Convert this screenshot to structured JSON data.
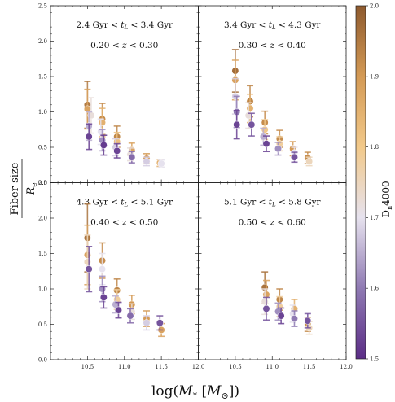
{
  "chart_data": {
    "type": "scatter",
    "xlabel": "log(M_* [M_⊙])",
    "ylabel_num": "Fiber size",
    "ylabel_den": "R_e",
    "xlim": [
      10.0,
      12.0
    ],
    "ylim": [
      0.0,
      2.5
    ],
    "xticks": [
      "10.5",
      "11.0",
      "11.5",
      "12.0"
    ],
    "yticks": [
      "0.0",
      "0.5",
      "1.0",
      "1.5",
      "2.0",
      "2.5"
    ],
    "colorbar": {
      "label": "D_n4000",
      "range": [
        1.5,
        2.0
      ],
      "ticks": [
        "1.5",
        "1.6",
        "1.7",
        "1.8",
        "1.9",
        "2.0"
      ],
      "colors": [
        "#5b2d86",
        "#8f7ab3",
        "#e6e2ee",
        "#f2c98a",
        "#d49a55",
        "#8e5a2e"
      ]
    },
    "panels": [
      {
        "age_label": "2.4 Gyr < t_L < 3.4 Gyr",
        "z_label": "0.20 < z < 0.30",
        "points": [
          {
            "x": 10.5,
            "y": 1.1,
            "err": 0.33,
            "d": 1.95
          },
          {
            "x": 10.5,
            "y": 1.04,
            "err": 0.28,
            "d": 1.88
          },
          {
            "x": 10.52,
            "y": 0.8,
            "err": 0.2,
            "d": 1.65
          },
          {
            "x": 10.52,
            "y": 0.65,
            "err": 0.18,
            "d": 1.53
          },
          {
            "x": 10.55,
            "y": 0.95,
            "err": 0.25,
            "d": 1.72
          },
          {
            "x": 10.7,
            "y": 0.9,
            "err": 0.22,
            "d": 1.92
          },
          {
            "x": 10.7,
            "y": 0.85,
            "err": 0.2,
            "d": 1.85
          },
          {
            "x": 10.68,
            "y": 0.72,
            "err": 0.18,
            "d": 1.7
          },
          {
            "x": 10.7,
            "y": 0.6,
            "err": 0.15,
            "d": 1.62
          },
          {
            "x": 10.72,
            "y": 0.53,
            "err": 0.14,
            "d": 1.52
          },
          {
            "x": 10.9,
            "y": 0.65,
            "err": 0.15,
            "d": 1.93
          },
          {
            "x": 10.9,
            "y": 0.58,
            "err": 0.13,
            "d": 1.82
          },
          {
            "x": 10.88,
            "y": 0.5,
            "err": 0.12,
            "d": 1.68
          },
          {
            "x": 10.9,
            "y": 0.45,
            "err": 0.1,
            "d": 1.53
          },
          {
            "x": 11.1,
            "y": 0.46,
            "err": 0.1,
            "d": 1.88
          },
          {
            "x": 11.08,
            "y": 0.4,
            "err": 0.09,
            "d": 1.72
          },
          {
            "x": 11.1,
            "y": 0.36,
            "err": 0.08,
            "d": 1.58
          },
          {
            "x": 11.3,
            "y": 0.34,
            "err": 0.07,
            "d": 1.9
          },
          {
            "x": 11.3,
            "y": 0.3,
            "err": 0.06,
            "d": 1.68
          },
          {
            "x": 11.48,
            "y": 0.28,
            "err": 0.05,
            "d": 1.85
          },
          {
            "x": 11.5,
            "y": 0.27,
            "err": 0.05,
            "d": 1.7
          }
        ]
      },
      {
        "age_label": "3.4 Gyr < t_L < 4.3 Gyr",
        "z_label": "0.30 < z < 0.40",
        "points": [
          {
            "x": 10.5,
            "y": 1.58,
            "err": 0.3,
            "d": 1.97
          },
          {
            "x": 10.5,
            "y": 1.45,
            "err": 0.28,
            "d": 1.88
          },
          {
            "x": 10.5,
            "y": 1.22,
            "err": 0.25,
            "d": 1.68
          },
          {
            "x": 10.52,
            "y": 1.0,
            "err": 0.22,
            "d": 1.6
          },
          {
            "x": 10.52,
            "y": 0.82,
            "err": 0.2,
            "d": 1.53
          },
          {
            "x": 10.7,
            "y": 1.15,
            "err": 0.22,
            "d": 1.93
          },
          {
            "x": 10.7,
            "y": 1.05,
            "err": 0.2,
            "d": 1.85
          },
          {
            "x": 10.68,
            "y": 0.95,
            "err": 0.18,
            "d": 1.72
          },
          {
            "x": 10.72,
            "y": 0.82,
            "err": 0.16,
            "d": 1.55
          },
          {
            "x": 10.9,
            "y": 0.85,
            "err": 0.16,
            "d": 1.92
          },
          {
            "x": 10.9,
            "y": 0.75,
            "err": 0.14,
            "d": 1.8
          },
          {
            "x": 10.88,
            "y": 0.65,
            "err": 0.12,
            "d": 1.65
          },
          {
            "x": 10.92,
            "y": 0.55,
            "err": 0.11,
            "d": 1.53
          },
          {
            "x": 11.1,
            "y": 0.62,
            "err": 0.12,
            "d": 1.92
          },
          {
            "x": 11.1,
            "y": 0.55,
            "err": 0.1,
            "d": 1.78
          },
          {
            "x": 11.08,
            "y": 0.48,
            "err": 0.09,
            "d": 1.62
          },
          {
            "x": 11.28,
            "y": 0.48,
            "err": 0.1,
            "d": 1.9
          },
          {
            "x": 11.3,
            "y": 0.42,
            "err": 0.08,
            "d": 1.7
          },
          {
            "x": 11.3,
            "y": 0.36,
            "err": 0.07,
            "d": 1.55
          },
          {
            "x": 11.48,
            "y": 0.35,
            "err": 0.08,
            "d": 1.92
          },
          {
            "x": 11.5,
            "y": 0.3,
            "err": 0.06,
            "d": 1.75
          }
        ]
      },
      {
        "age_label": "4.3 Gyr < t_L < 5.1 Gyr",
        "z_label": "0.40 < z < 0.50",
        "points": [
          {
            "x": 10.5,
            "y": 1.72,
            "err": 0.48,
            "d": 1.96
          },
          {
            "x": 10.5,
            "y": 1.48,
            "err": 0.42,
            "d": 1.88
          },
          {
            "x": 10.5,
            "y": 1.38,
            "err": 0.38,
            "d": 1.75
          },
          {
            "x": 10.52,
            "y": 1.28,
            "err": 0.32,
            "d": 1.55
          },
          {
            "x": 10.7,
            "y": 1.4,
            "err": 0.25,
            "d": 1.92
          },
          {
            "x": 10.7,
            "y": 1.28,
            "err": 0.22,
            "d": 1.7
          },
          {
            "x": 10.7,
            "y": 1.0,
            "err": 0.18,
            "d": 1.62
          },
          {
            "x": 10.72,
            "y": 0.88,
            "err": 0.15,
            "d": 1.53
          },
          {
            "x": 10.9,
            "y": 0.98,
            "err": 0.16,
            "d": 1.93
          },
          {
            "x": 10.9,
            "y": 0.85,
            "err": 0.14,
            "d": 1.78
          },
          {
            "x": 10.88,
            "y": 0.78,
            "err": 0.12,
            "d": 1.65
          },
          {
            "x": 10.92,
            "y": 0.7,
            "err": 0.11,
            "d": 1.53
          },
          {
            "x": 11.1,
            "y": 0.78,
            "err": 0.13,
            "d": 1.9
          },
          {
            "x": 11.1,
            "y": 0.68,
            "err": 0.11,
            "d": 1.72
          },
          {
            "x": 11.08,
            "y": 0.62,
            "err": 0.1,
            "d": 1.58
          },
          {
            "x": 11.3,
            "y": 0.58,
            "err": 0.11,
            "d": 1.9
          },
          {
            "x": 11.3,
            "y": 0.52,
            "err": 0.1,
            "d": 1.68
          },
          {
            "x": 11.48,
            "y": 0.52,
            "err": 0.1,
            "d": 1.55
          },
          {
            "x": 11.5,
            "y": 0.42,
            "err": 0.09,
            "d": 1.88
          }
        ]
      },
      {
        "age_label": "5.1 Gyr < t_L < 5.8 Gyr",
        "z_label": "0.50 < z < 0.60",
        "points": [
          {
            "x": 10.9,
            "y": 1.02,
            "err": 0.22,
            "d": 1.96
          },
          {
            "x": 10.92,
            "y": 0.92,
            "err": 0.2,
            "d": 1.88
          },
          {
            "x": 10.9,
            "y": 0.82,
            "err": 0.18,
            "d": 1.72
          },
          {
            "x": 10.92,
            "y": 0.72,
            "err": 0.16,
            "d": 1.55
          },
          {
            "x": 11.1,
            "y": 0.85,
            "err": 0.15,
            "d": 1.93
          },
          {
            "x": 11.1,
            "y": 0.75,
            "err": 0.14,
            "d": 1.78
          },
          {
            "x": 11.08,
            "y": 0.68,
            "err": 0.12,
            "d": 1.62
          },
          {
            "x": 11.12,
            "y": 0.62,
            "err": 0.11,
            "d": 1.53
          },
          {
            "x": 11.3,
            "y": 0.72,
            "err": 0.13,
            "d": 1.85
          },
          {
            "x": 11.28,
            "y": 0.65,
            "err": 0.12,
            "d": 1.7
          },
          {
            "x": 11.3,
            "y": 0.58,
            "err": 0.11,
            "d": 1.6
          },
          {
            "x": 11.48,
            "y": 0.5,
            "err": 0.1,
            "d": 1.92
          },
          {
            "x": 11.5,
            "y": 0.45,
            "err": 0.09,
            "d": 1.75
          },
          {
            "x": 11.48,
            "y": 0.55,
            "err": 0.1,
            "d": 1.55
          }
        ]
      }
    ]
  }
}
